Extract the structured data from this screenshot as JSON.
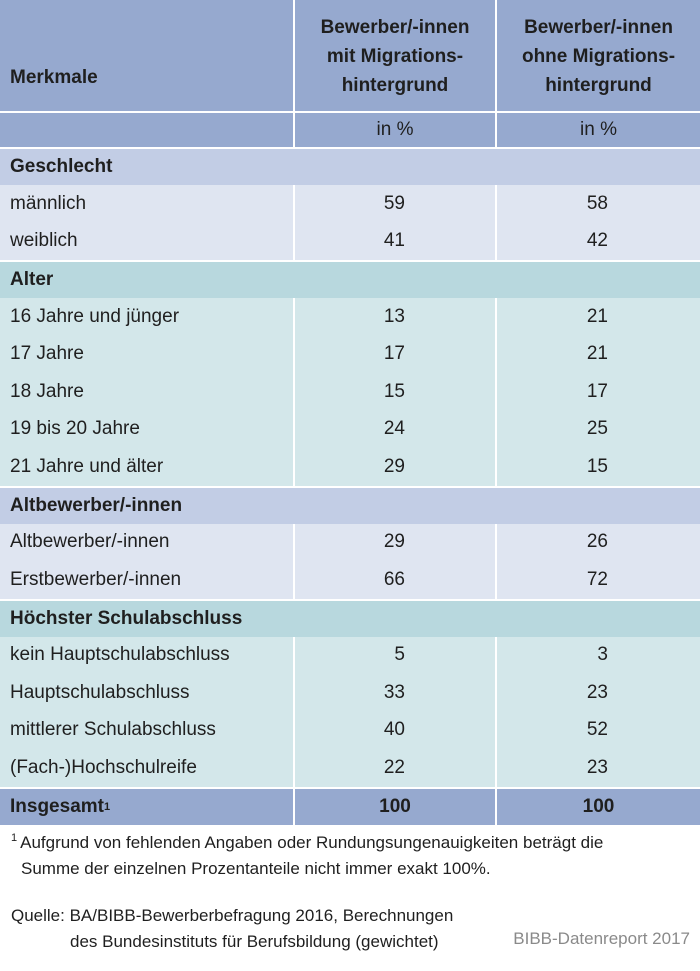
{
  "header": {
    "merkmale": "Merkmale",
    "col_with_line1": "Bewerber/-innen",
    "col_with_line2": "mit Migrations-",
    "col_with_line3": "hintergrund",
    "col_without_line1": "Bewerber/-innen",
    "col_without_line2": "ohne Migrations-",
    "col_without_line3": "hintergrund",
    "unit_with": "in %",
    "unit_without": "in %"
  },
  "sections": [
    {
      "title": "Geschlecht",
      "rows": [
        {
          "label": "männlich",
          "with": "59",
          "without": "58"
        },
        {
          "label": "weiblich",
          "with": "41",
          "without": "42"
        }
      ]
    },
    {
      "title": "Alter",
      "rows": [
        {
          "label": "16 Jahre und jünger",
          "with": "13",
          "without": "21"
        },
        {
          "label": "17 Jahre",
          "with": "17",
          "without": "21"
        },
        {
          "label": "18 Jahre",
          "with": "15",
          "without": "17"
        },
        {
          "label": "19 bis 20 Jahre",
          "with": "24",
          "without": "25"
        },
        {
          "label": "21 Jahre und älter",
          "with": "29",
          "without": "15"
        }
      ]
    },
    {
      "title": "Altbewerber/-innen",
      "rows": [
        {
          "label": "Altbewerber/-innen",
          "with": "29",
          "without": "26"
        },
        {
          "label": "Erstbewerber/-innen",
          "with": "66",
          "without": "72"
        }
      ]
    },
    {
      "title": "Höchster Schulabschluss",
      "rows": [
        {
          "label": "kein Hauptschulabschluss",
          "with": "5",
          "without": "3"
        },
        {
          "label": "Hauptschulabschluss",
          "with": "33",
          "without": "23"
        },
        {
          "label": "mittlerer Schulabschluss",
          "with": "40",
          "without": "52"
        },
        {
          "label": "(Fach-)Hochschulreife",
          "with": "22",
          "without": "23"
        }
      ]
    }
  ],
  "total": {
    "label": "Insgesamt",
    "superscript": "1",
    "with": "100",
    "without": "100"
  },
  "footnote": {
    "mark": "1",
    "line1": "Aufgrund von fehlenden Angaben oder Rundungsungenauigkeiten beträgt die",
    "line2": "Summe der einzelnen Prozentanteile nicht immer exakt 100%."
  },
  "source": {
    "line1": "Quelle: BA/BIBB-Bewerberbefragung 2016, Berechnungen",
    "line2": "des Bundesinstituts für Berufsbildung (gewichtet)"
  },
  "brand": "BIBB-Datenreport 2017",
  "colors": {
    "header": "#96a9cf",
    "section_blue_head": "#c2cde5",
    "section_blue_body": "#dfe5f1",
    "section_teal_head": "#b8d8de",
    "section_teal_body": "#d3e7ea"
  }
}
